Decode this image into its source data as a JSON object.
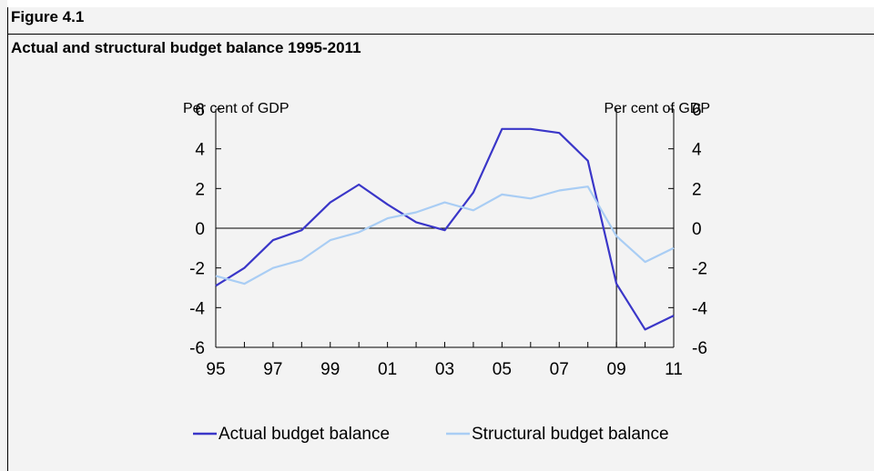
{
  "figure": {
    "label": "Figure 4.1",
    "title": "Actual and structural budget balance 1995-2011"
  },
  "chart_data": {
    "type": "line",
    "title": "Actual and structural budget balance 1995-2011",
    "y_unit_left": "Per cent of GDP",
    "y_unit_right": "Per cent of GDP",
    "xlim": [
      1995,
      2011
    ],
    "ylim": [
      -6,
      6
    ],
    "x_ticks": [
      1995,
      1997,
      1999,
      2001,
      2003,
      2005,
      2007,
      2009,
      2011
    ],
    "x_tick_labels": [
      "95",
      "97",
      "99",
      "01",
      "03",
      "05",
      "07",
      "09",
      "11"
    ],
    "y_ticks": [
      -6,
      -4,
      -2,
      0,
      2,
      4,
      6
    ],
    "y_tick_labels": [
      "-6",
      "-4",
      "-2",
      "0",
      "2",
      "4",
      "6"
    ],
    "vertical_marker_x": 2009,
    "grid": false,
    "legend_position": "bottom",
    "x": [
      1995,
      1996,
      1997,
      1998,
      1999,
      2000,
      2001,
      2002,
      2003,
      2004,
      2005,
      2006,
      2007,
      2008,
      2009,
      2010,
      2011
    ],
    "series": [
      {
        "name": "Actual budget balance",
        "color": "#3a36c8",
        "values": [
          -2.9,
          -2.0,
          -0.6,
          -0.1,
          1.3,
          2.2,
          1.2,
          0.3,
          -0.1,
          1.8,
          5.0,
          5.0,
          4.8,
          3.4,
          -2.8,
          -5.1,
          -4.4
        ]
      },
      {
        "name": "Structural budget balance",
        "color": "#a9cdf4",
        "values": [
          -2.4,
          -2.8,
          -2.0,
          -1.6,
          -0.6,
          -0.2,
          0.5,
          0.8,
          1.3,
          0.9,
          1.7,
          1.5,
          1.9,
          2.1,
          -0.4,
          -1.7,
          -1.0
        ]
      }
    ]
  }
}
